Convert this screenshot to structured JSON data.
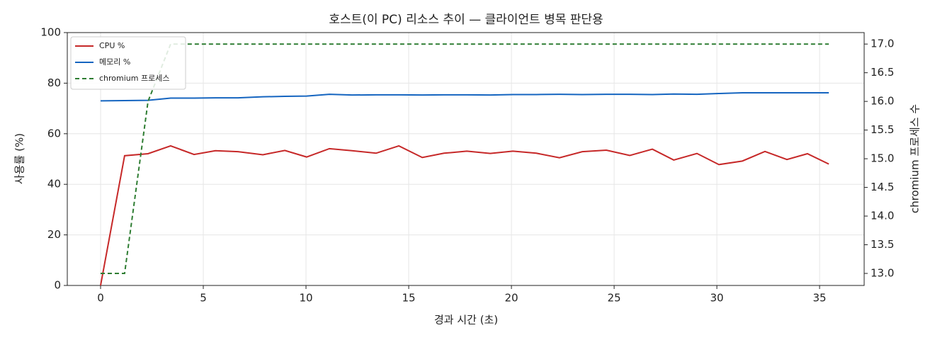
{
  "chart_data": {
    "type": "line",
    "title": "호스트(이 PC) 리소스 추이 — 클라이언트 병목 판단용",
    "x_label": "경과 시간 (초)",
    "y_label": "사용률 (%)",
    "y2_label": "chromium 프로세스 수",
    "x": [
      0,
      1.17,
      2.31,
      3.41,
      4.55,
      5.59,
      6.69,
      7.9,
      8.97,
      10.03,
      11.14,
      12.24,
      13.41,
      14.52,
      15.66,
      16.72,
      17.83,
      18.97,
      20.07,
      21.21,
      22.34,
      23.45,
      24.62,
      25.76,
      26.86,
      27.9,
      29.03,
      30.1,
      31.24,
      32.34,
      33.41,
      34.41,
      35.45
    ],
    "series": [
      {
        "name": "CPU %",
        "color": "#c62828",
        "linestyle": "solid",
        "values": [
          0,
          51.3,
          52.1,
          55.2,
          51.8,
          53.3,
          52.9,
          51.7,
          53.4,
          50.8,
          54.1,
          53.3,
          52.3,
          55.2,
          50.6,
          52.3,
          53.1,
          52.2,
          53.1,
          52.3,
          50.5,
          52.9,
          53.5,
          51.4,
          53.9,
          49.6,
          52.2,
          47.8,
          49.2,
          53.0,
          49.8,
          52.1,
          48.0
        ]
      },
      {
        "name": "메모리 %",
        "color": "#1565c0",
        "linestyle": "solid",
        "values": [
          73.0,
          73.1,
          73.2,
          74.1,
          74.1,
          74.2,
          74.2,
          74.6,
          74.8,
          74.9,
          75.6,
          75.3,
          75.4,
          75.4,
          75.3,
          75.4,
          75.4,
          75.3,
          75.5,
          75.5,
          75.6,
          75.5,
          75.6,
          75.6,
          75.5,
          75.7,
          75.6,
          75.9,
          76.2,
          76.2,
          76.2,
          76.2,
          76.2
        ]
      },
      {
        "name": "chromium 프로세스",
        "color": "#2e7d32",
        "linestyle": "dashed",
        "axis": "y2",
        "values": [
          13,
          13,
          16,
          17,
          17,
          17,
          17,
          17,
          17,
          17,
          17,
          17,
          17,
          17,
          17,
          17,
          17,
          17,
          17,
          17,
          17,
          17,
          17,
          17,
          17,
          17,
          17,
          17,
          17,
          17,
          17,
          17,
          17
        ]
      }
    ],
    "xlim": [
      -1.62,
      37.17
    ],
    "xticks": [
      0,
      5,
      10,
      15,
      20,
      25,
      30,
      35
    ],
    "ylim": [
      0,
      100
    ],
    "yticks": [
      0,
      20,
      40,
      60,
      80,
      100
    ],
    "y2lim": [
      12.79,
      17.2
    ],
    "y2ticks": [
      {
        "value": 13,
        "label": "13.0"
      },
      {
        "value": 13.5,
        "label": "13.5"
      },
      {
        "value": 14,
        "label": "14.0"
      },
      {
        "value": 14.5,
        "label": "14.5"
      },
      {
        "value": 15,
        "label": "15.0"
      },
      {
        "value": 15.5,
        "label": "15.5"
      },
      {
        "value": 16,
        "label": "16.0"
      },
      {
        "value": 16.5,
        "label": "16.5"
      },
      {
        "value": 17,
        "label": "17.0"
      }
    ],
    "grid": true,
    "legend": "upper-left"
  }
}
